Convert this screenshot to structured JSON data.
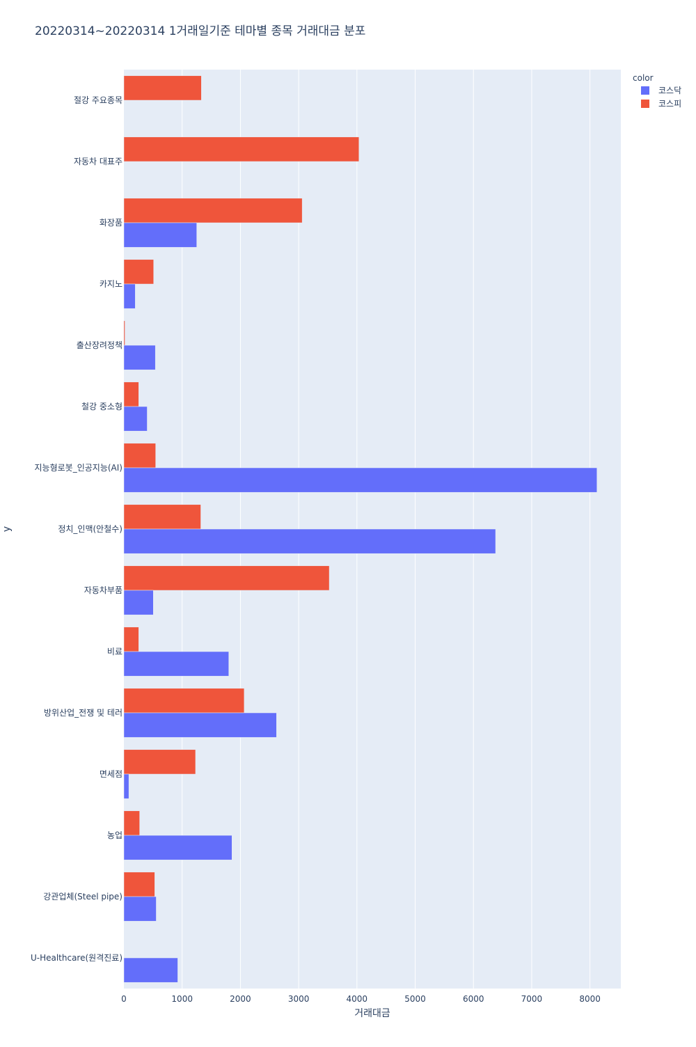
{
  "chart_data": {
    "type": "bar",
    "orientation": "horizontal",
    "title": "20220314~20220314 1거래일기준 테마별 종목 거래대금 분포",
    "xlabel": "거래대금",
    "ylabel": "y",
    "xlim": [
      0,
      8530
    ],
    "xticks": [
      0,
      1000,
      2000,
      3000,
      4000,
      5000,
      6000,
      7000,
      8000
    ],
    "xtick_labels": [
      "0",
      "1000",
      "2000",
      "3000",
      "4000",
      "5000",
      "6000",
      "7000",
      "8000"
    ],
    "grid": true,
    "legend_title": "color",
    "legend_position": "top-right",
    "categories": [
      "절강 주요종목",
      "자동차 대표주",
      "화장품",
      "카지노",
      "출산장려정책",
      "철강 중소형",
      "지능형로봇_인공지능(AI)",
      "정치_인맥(안철수)",
      "자동차부품",
      "비료",
      "방위산업_전쟁 및 테러",
      "면세점",
      "농업",
      "강관업체(Steel pipe)",
      "U-Healthcare(원격진료)"
    ],
    "series": [
      {
        "name": "코스닥",
        "color": "#636efa",
        "values": [
          null,
          null,
          1250,
          195,
          540,
          400,
          8120,
          6380,
          505,
          1800,
          2620,
          85,
          1855,
          555,
          925
        ]
      },
      {
        "name": "코스피",
        "color": "#ef553b",
        "values": [
          1330,
          4035,
          3060,
          510,
          18,
          255,
          545,
          1320,
          3525,
          255,
          2065,
          1230,
          270,
          530,
          null
        ]
      }
    ]
  },
  "colors": {
    "plot_background": "#e5ecf6",
    "grid": "#ffffff",
    "text": "#2a3f5f"
  }
}
